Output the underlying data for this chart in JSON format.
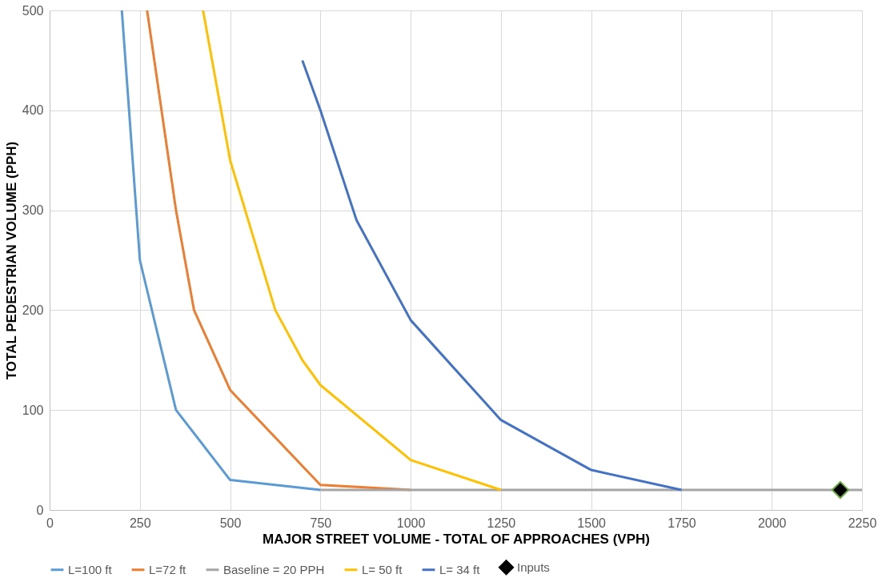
{
  "chart_data": {
    "type": "line",
    "xlabel": "MAJOR STREET VOLUME - TOTAL OF APPROACHES (VPH)",
    "ylabel": "TOTAL PEDESTRIAN VOLUME (PPH)",
    "xlim": [
      0,
      2250
    ],
    "xticks": [
      0,
      250,
      500,
      750,
      1000,
      1250,
      1500,
      1750,
      2000,
      2250
    ],
    "ylim": [
      0,
      500
    ],
    "yticks": [
      0,
      100,
      200,
      300,
      400,
      500
    ],
    "grid": true,
    "legend": "bottom",
    "line_style": "solid",
    "series": [
      {
        "name": "L=100 ft",
        "color": "#5b9bd5",
        "x": [
          200,
          250,
          350,
          500,
          750
        ],
        "values": [
          500,
          250,
          100,
          30,
          20
        ]
      },
      {
        "name": "L=72 ft",
        "color": "#ed7d31",
        "x": [
          270,
          350,
          400,
          500,
          750,
          1000
        ],
        "values": [
          500,
          300,
          200,
          120,
          25,
          20
        ]
      },
      {
        "name": "Baseline = 20 PPH",
        "color": "#a5a5a5",
        "x": [
          750,
          2250
        ],
        "values": [
          20,
          20
        ]
      },
      {
        "name": "L= 50 ft",
        "color": "#ffc000",
        "x": [
          425,
          500,
          625,
          700,
          750,
          1000,
          1250
        ],
        "values": [
          500,
          350,
          200,
          150,
          125,
          50,
          20
        ]
      },
      {
        "name": "L= 34 ft",
        "color": "#4472c4",
        "x": [
          700,
          750,
          850,
          1000,
          1250,
          1500,
          1750
        ],
        "values": [
          450,
          400,
          290,
          190,
          90,
          40,
          20
        ]
      },
      {
        "name": "Inputs",
        "type": "scatter",
        "marker": "diamond",
        "color": "#000000",
        "x": [
          2190
        ],
        "values": [
          20
        ]
      }
    ]
  }
}
